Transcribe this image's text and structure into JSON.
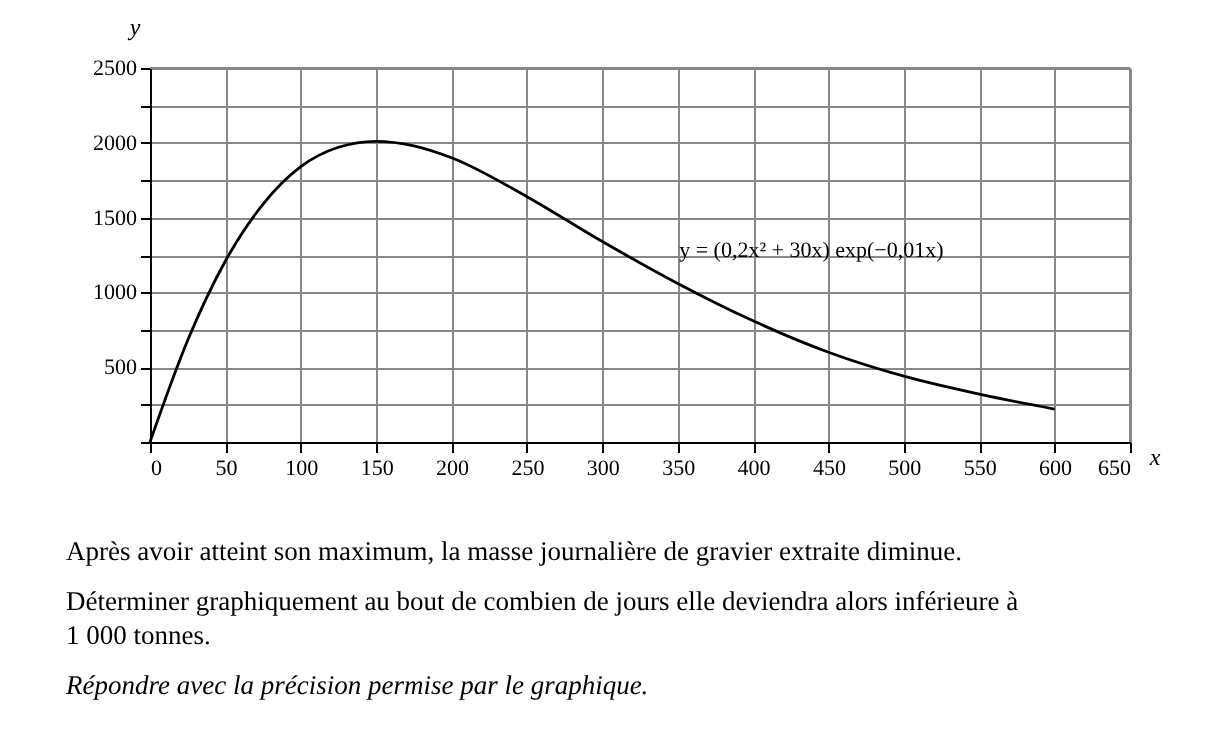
{
  "chart_data": {
    "type": "line",
    "xlabel": "x",
    "ylabel": "y",
    "x": [
      0,
      25,
      50,
      75,
      100,
      125,
      150,
      175,
      200,
      250,
      300,
      350,
      400,
      450,
      500,
      550,
      600
    ],
    "series": [
      {
        "color": "#000000",
        "values": [
          0,
          680,
          1210,
          1590,
          1840,
          1970,
          2010,
          1980,
          1900,
          1640,
          1340,
          1060,
          810,
          600,
          440,
          320,
          220
        ]
      }
    ],
    "xlim": [
      0,
      650
    ],
    "ylim": [
      0,
      2500
    ],
    "xticks": [
      0,
      50,
      100,
      150,
      200,
      250,
      300,
      350,
      400,
      450,
      500,
      550,
      600,
      650
    ],
    "yticks": [
      {
        "value": 0,
        "label": null
      },
      {
        "value": 250,
        "label": null
      },
      500,
      {
        "value": 750,
        "label": null
      },
      1000,
      {
        "value": 1250,
        "label": null
      },
      1500,
      {
        "value": 1750,
        "label": null
      },
      2000,
      {
        "value": 2250,
        "label": null
      },
      2500
    ],
    "grid": true,
    "marker": "none",
    "line_style": "solid",
    "annotations": [
      "y = (0,2x² + 30x) exp(−0,01x)",
      "Après avoir atteint son maximum, la masse journalière de gravier extraite diminue.",
      "Déterminer graphiquement au bout de combien de jours elle deviendra alors inférieure à 1 000 tonnes.",
      "Répondre avec la précision permise par le graphique."
    ]
  }
}
